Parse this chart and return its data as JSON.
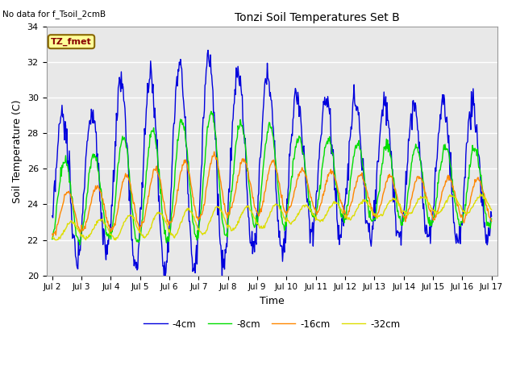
{
  "title": "Tonzi Soil Temperatures Set B",
  "no_data_text": "No data for f_Tsoil_2cmB",
  "annotation_text": "TZ_fmet",
  "xlabel": "Time",
  "ylabel": "Soil Temperature (C)",
  "ylim": [
    20,
    34
  ],
  "yticks": [
    20,
    22,
    24,
    26,
    28,
    30,
    32,
    34
  ],
  "bg_color": "#e8e8e8",
  "line_colors": {
    "-4cm": "#0000dd",
    "-8cm": "#00dd00",
    "-16cm": "#ff8800",
    "-32cm": "#dddd00"
  },
  "legend_labels": [
    "-4cm",
    "-8cm",
    "-16cm",
    "-32cm"
  ],
  "x_tick_labels": [
    "Jul 2",
    "Jul 3",
    "Jul 4",
    "Jul 5",
    "Jul 6",
    "Jul 7",
    "Jul 8",
    "Jul 9",
    "Jul 10",
    "Jul 11",
    "Jul 12",
    "Jul 13",
    "Jul 14",
    "Jul 15",
    "Jul 16",
    "Jul 17"
  ],
  "num_days": 15,
  "points_per_day": 48
}
